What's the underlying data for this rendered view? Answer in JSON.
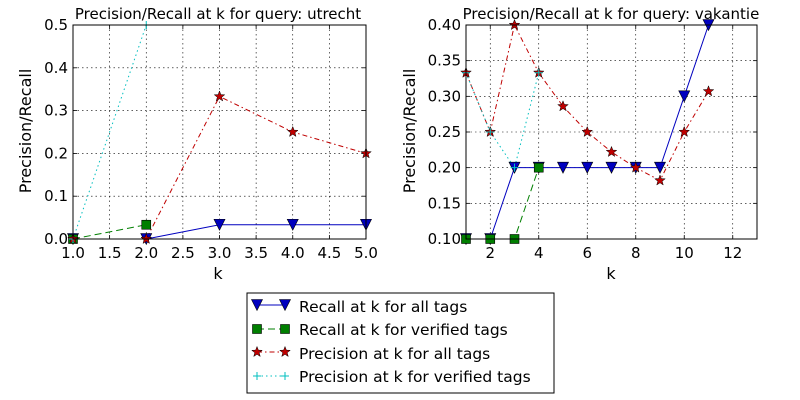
{
  "chart_data": [
    {
      "type": "line",
      "title": "Precision/Recall at k for query: utrecht",
      "xlabel": "k",
      "ylabel": "Precision/Recall",
      "xlim": [
        1.0,
        5.0
      ],
      "ylim": [
        0.0,
        0.5
      ],
      "xticks": [
        1.0,
        1.5,
        2.0,
        2.5,
        3.0,
        3.5,
        4.0,
        4.5,
        5.0
      ],
      "xtick_labels": [
        "1.0",
        "1.5",
        "2.0",
        "2.5",
        "3.0",
        "3.5",
        "4.0",
        "4.5",
        "5.0"
      ],
      "yticks": [
        0.0,
        0.1,
        0.2,
        0.3,
        0.4,
        0.5
      ],
      "ytick_labels": [
        "0.0",
        "0.1",
        "0.2",
        "0.3",
        "0.4",
        "0.5"
      ],
      "grid": true,
      "series": [
        {
          "key": "recall_all",
          "name": "Recall at k for all tags",
          "x": [
            1,
            2,
            3,
            4,
            5
          ],
          "y": [
            0.0,
            0.0,
            0.0333,
            0.0333,
            0.0333
          ]
        },
        {
          "key": "recall_verified",
          "name": "Recall at k for verified tags",
          "x": [
            1,
            2
          ],
          "y": [
            0.0,
            0.0333
          ]
        },
        {
          "key": "precision_all",
          "name": "Precision at k for all tags",
          "x": [
            1,
            2,
            3,
            4,
            5
          ],
          "y": [
            0.0,
            0.0,
            0.333,
            0.25,
            0.2
          ]
        },
        {
          "key": "precision_verified",
          "name": "Precision at k for verified tags",
          "x": [
            1,
            2
          ],
          "y": [
            0.0,
            0.5
          ]
        }
      ]
    },
    {
      "type": "line",
      "title": "Precision/Recall at k for query: vakantie",
      "xlabel": "k",
      "ylabel": "Precision/Recall",
      "xlim": [
        1,
        13
      ],
      "ylim": [
        0.1,
        0.4
      ],
      "xticks": [
        2,
        4,
        6,
        8,
        10,
        12
      ],
      "xtick_labels": [
        "2",
        "4",
        "6",
        "8",
        "10",
        "12"
      ],
      "yticks": [
        0.1,
        0.15,
        0.2,
        0.25,
        0.3,
        0.35,
        0.4
      ],
      "ytick_labels": [
        "0.10",
        "0.15",
        "0.20",
        "0.25",
        "0.30",
        "0.35",
        "0.40"
      ],
      "grid": true,
      "series": [
        {
          "key": "recall_all",
          "name": "Recall at k for all tags",
          "x": [
            1,
            2,
            3,
            4,
            5,
            6,
            7,
            8,
            9,
            10,
            11
          ],
          "y": [
            0.1,
            0.1,
            0.2,
            0.2,
            0.2,
            0.2,
            0.2,
            0.2,
            0.2,
            0.3,
            0.4
          ]
        },
        {
          "key": "recall_verified",
          "name": "Recall at k for verified tags",
          "x": [
            1,
            2,
            3,
            4
          ],
          "y": [
            0.1,
            0.1,
            0.1,
            0.2
          ]
        },
        {
          "key": "precision_all",
          "name": "Precision at k for all tags",
          "x": [
            1,
            2,
            3,
            4,
            5,
            6,
            7,
            8,
            9,
            10,
            11
          ],
          "y": [
            0.333,
            0.25,
            0.4,
            0.333,
            0.286,
            0.25,
            0.222,
            0.2,
            0.182,
            0.25,
            0.307
          ]
        },
        {
          "key": "precision_verified",
          "name": "Precision at k for verified tags",
          "x": [
            1,
            2,
            3,
            4
          ],
          "y": [
            0.333,
            0.25,
            0.2,
            0.333
          ]
        }
      ]
    }
  ],
  "legend": {
    "placement": "bottom-center",
    "entries": [
      {
        "key": "recall_all",
        "label": "Recall at k for all tags"
      },
      {
        "key": "recall_verified",
        "label": "Recall at k for verified tags"
      },
      {
        "key": "precision_all",
        "label": "Precision at k for all tags"
      },
      {
        "key": "precision_verified",
        "label": "Precision at k for verified tags"
      }
    ]
  },
  "styles": {
    "recall_all": {
      "color": "#0000bf",
      "marker": "triangle-down",
      "dash": ""
    },
    "recall_verified": {
      "color": "#007f00",
      "marker": "square",
      "dash": "7,4"
    },
    "precision_all": {
      "color": "#bf0000",
      "marker": "star",
      "dash": "5,3,1.5,3"
    },
    "precision_verified": {
      "color": "#00bfbf",
      "marker": "plus",
      "dash": "1.5,3"
    }
  }
}
